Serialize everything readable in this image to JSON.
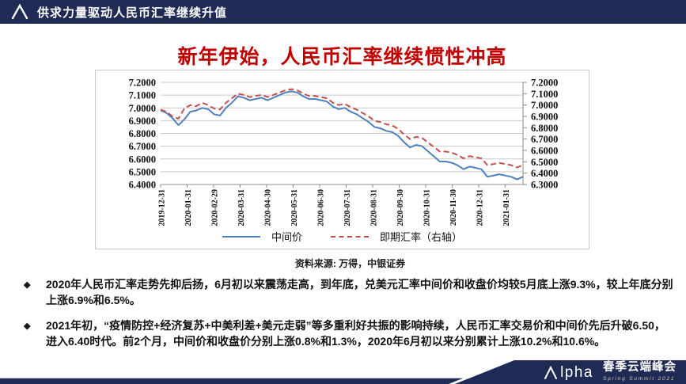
{
  "header": {
    "title": "供求力量驱动人民币汇率继续升值",
    "logo": "alpha-triangle-logo"
  },
  "slide": {
    "title": "新年伊始，人民币汇率继续惯性冲高",
    "title_color": "#c00000",
    "source_note": "资料来源: 万得，中银证券"
  },
  "chart_data": {
    "type": "line",
    "title": "新年伊始，人民币汇率继续惯性冲高",
    "grid": true,
    "legend_position": "bottom",
    "x_tick_labels": [
      "2019-12-31",
      "2020-01-31",
      "2020-02-29",
      "2020-03-31",
      "2020-04-30",
      "2020-05-31",
      "2020-06-30",
      "2020-07-31",
      "2020-08-31",
      "2020-09-30",
      "2020-10-31",
      "2020-11-30",
      "2020-12-31",
      "2021-01-31"
    ],
    "left_axis": {
      "ticks": [
        "7.2000",
        "7.1000",
        "7.0000",
        "6.9000",
        "6.8000",
        "6.7000",
        "6.6000",
        "6.5000",
        "6.4000"
      ],
      "min": 6.4,
      "max": 7.2
    },
    "right_axis": {
      "ticks": [
        "7.2000",
        "7.1000",
        "7.0000",
        "6.9000",
        "6.8000",
        "6.7000",
        "6.6000",
        "6.5000",
        "6.4000",
        "6.3000"
      ],
      "min": 6.3,
      "max": 7.2
    },
    "x_months_total": 13.67,
    "series": [
      {
        "name": "中间价",
        "axis": "left",
        "color": "#4f81bd",
        "style": "solid",
        "values": [
          6.98,
          6.96,
          6.92,
          6.865,
          6.91,
          6.97,
          6.98,
          7.0,
          6.99,
          6.95,
          6.94,
          7.0,
          7.04,
          7.09,
          7.08,
          7.06,
          7.07,
          7.08,
          7.06,
          7.08,
          7.1,
          7.12,
          7.13,
          7.12,
          7.09,
          7.07,
          7.07,
          7.06,
          7.05,
          7.01,
          6.99,
          7.0,
          6.97,
          6.95,
          6.92,
          6.89,
          6.85,
          6.84,
          6.82,
          6.81,
          6.78,
          6.73,
          6.69,
          6.71,
          6.7,
          6.66,
          6.62,
          6.58,
          6.58,
          6.57,
          6.55,
          6.52,
          6.54,
          6.53,
          6.52,
          6.46,
          6.47,
          6.48,
          6.47,
          6.46,
          6.44,
          6.46
        ]
      },
      {
        "name": "即期汇率（右轴）",
        "axis": "right",
        "color": "#c0504d",
        "style": "dashed",
        "values": [
          6.96,
          6.94,
          6.9,
          6.88,
          6.97,
          7.0,
          6.99,
          7.02,
          7.0,
          6.97,
          6.96,
          7.02,
          7.06,
          7.1,
          7.09,
          7.07,
          7.08,
          7.09,
          7.07,
          7.09,
          7.11,
          7.13,
          7.14,
          7.13,
          7.1,
          7.08,
          7.08,
          7.07,
          7.06,
          7.02,
          7.0,
          7.01,
          6.98,
          6.96,
          6.93,
          6.9,
          6.86,
          6.85,
          6.83,
          6.82,
          6.79,
          6.74,
          6.7,
          6.72,
          6.71,
          6.67,
          6.63,
          6.59,
          6.59,
          6.58,
          6.56,
          6.53,
          6.55,
          6.54,
          6.53,
          6.47,
          6.48,
          6.49,
          6.48,
          6.47,
          6.45,
          6.47
        ]
      }
    ]
  },
  "bullets": [
    {
      "marker": "◆",
      "text": "2020年人民币汇率走势先抑后扬，6月初以来震荡走高，到年底，兑美元汇率中间价和收盘价均较5月底上涨9.3%，较上年底分别上涨6.9%和6.5%。"
    },
    {
      "marker": "◆",
      "text": "2021年初，“疫情防控+经济复苏+中美利差+美元走弱”等多重利好共振的影响持续，人民币汇率交易价和中间价先后升破6.50，进入6.40时代。前2个月，中间价和收盘价分别上涨0.8%和1.3%，2020年6月初以来分别累计上涨10.2%和10.6%。"
    }
  ],
  "footer": {
    "brand": "Alpha",
    "brand_rest": "lpha",
    "event": "春季云端峰会",
    "subtitle": "Spring Summit 2021"
  },
  "colors": {
    "header_navy": "#1f2a55",
    "title_red": "#c00000",
    "line_blue": "#4f81bd",
    "line_red": "#c0504d",
    "gridline": "#c9c9c9"
  }
}
